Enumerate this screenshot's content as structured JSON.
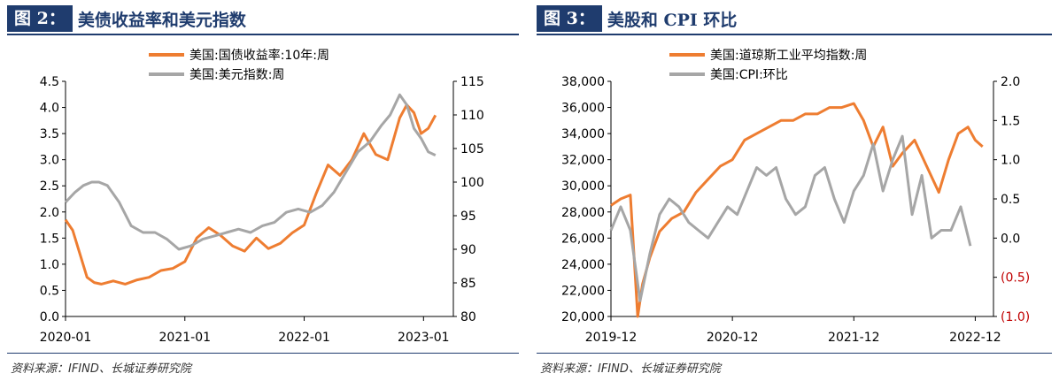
{
  "charts": [
    {
      "tag": "图 2：",
      "title": "美债收益率和美元指数",
      "source": "资料来源：IFIND、长城证券研究院"
    },
    {
      "tag": "图 3：",
      "title": "美股和 CPI 环比",
      "source": "资料来源：IFIND、长城证券研究院"
    }
  ],
  "chart_data": [
    {
      "type": "line",
      "title": "美债收益率和美元指数",
      "x_ticks": [
        "2020-01",
        "2021-01",
        "2022-01",
        "2023-01"
      ],
      "x_tick_pos": [
        0,
        1,
        2,
        3
      ],
      "y_left": {
        "range": [
          0,
          4.5
        ],
        "ticks": [
          0,
          0.5,
          1,
          1.5,
          2,
          2.5,
          3,
          3.5,
          4,
          4.5
        ],
        "tick_labels": [
          "0.0",
          "0.5",
          "1.0",
          "1.5",
          "2.0",
          "2.5",
          "3.0",
          "3.5",
          "4.0",
          "4.5"
        ]
      },
      "y_right": {
        "range": [
          80,
          115
        ],
        "ticks": [
          80,
          85,
          90,
          95,
          100,
          105,
          110,
          115
        ],
        "tick_labels": [
          "80",
          "85",
          "90",
          "95",
          "100",
          "105",
          "110",
          "115"
        ]
      },
      "legend": "top",
      "series": [
        {
          "name": "美国:国债收益率:10年:周",
          "axis": "left",
          "color": "#ee7d31",
          "x": [
            0.0,
            0.06,
            0.12,
            0.18,
            0.24,
            0.3,
            0.4,
            0.5,
            0.6,
            0.7,
            0.8,
            0.9,
            1.0,
            1.1,
            1.2,
            1.3,
            1.4,
            1.5,
            1.6,
            1.7,
            1.8,
            1.9,
            2.0,
            2.1,
            2.2,
            2.3,
            2.4,
            2.5,
            2.6,
            2.7,
            2.8,
            2.86,
            2.92,
            2.98,
            3.04,
            3.1
          ],
          "y": [
            1.85,
            1.65,
            1.2,
            0.75,
            0.65,
            0.62,
            0.68,
            0.62,
            0.7,
            0.75,
            0.88,
            0.92,
            1.05,
            1.5,
            1.7,
            1.55,
            1.35,
            1.25,
            1.5,
            1.3,
            1.4,
            1.6,
            1.75,
            2.35,
            2.9,
            2.7,
            3.0,
            3.5,
            3.1,
            3.0,
            3.8,
            4.05,
            3.9,
            3.5,
            3.6,
            3.85
          ]
        },
        {
          "name": "美国:美元指数:周",
          "axis": "right",
          "color": "#a6a6a6",
          "x": [
            0.0,
            0.08,
            0.15,
            0.22,
            0.28,
            0.35,
            0.45,
            0.55,
            0.65,
            0.75,
            0.85,
            0.95,
            1.05,
            1.15,
            1.25,
            1.35,
            1.45,
            1.55,
            1.65,
            1.75,
            1.85,
            1.95,
            2.05,
            2.15,
            2.25,
            2.35,
            2.45,
            2.55,
            2.65,
            2.72,
            2.8,
            2.86,
            2.92,
            2.98,
            3.04,
            3.1
          ],
          "y": [
            97,
            98.5,
            99.5,
            100,
            100,
            99.5,
            97,
            93.5,
            92.5,
            92.5,
            91.5,
            90,
            90.5,
            91.5,
            92,
            92.5,
            93,
            92.5,
            93.5,
            94,
            95.5,
            96,
            95.5,
            96.5,
            98.5,
            101.5,
            104.5,
            106,
            108.5,
            110,
            113,
            111.5,
            108,
            106.5,
            104.5,
            104
          ]
        }
      ]
    },
    {
      "type": "line",
      "title": "美股和 CPI 环比",
      "x_ticks": [
        "2019-12",
        "2020-12",
        "2021-12",
        "2022-12"
      ],
      "x_tick_pos": [
        0,
        1,
        2,
        3
      ],
      "y_left": {
        "range": [
          20000,
          38000
        ],
        "ticks": [
          20000,
          22000,
          24000,
          26000,
          28000,
          30000,
          32000,
          34000,
          36000,
          38000
        ],
        "tick_labels": [
          "20,000",
          "22,000",
          "24,000",
          "26,000",
          "28,000",
          "30,000",
          "32,000",
          "34,000",
          "36,000",
          "38,000"
        ]
      },
      "y_right": {
        "range": [
          -1.0,
          2.0
        ],
        "ticks": [
          -1.0,
          -0.5,
          0,
          0.5,
          1.0,
          1.5,
          2.0
        ],
        "tick_labels": [
          "(1.0)",
          "(0.5)",
          "0.0",
          "0.5",
          "1.0",
          "1.5",
          "2.0"
        ]
      },
      "legend": "top",
      "series": [
        {
          "name": "美国:道琼斯工业平均指数:周",
          "axis": "left",
          "color": "#ee7d31",
          "x": [
            0.0,
            0.08,
            0.16,
            0.22,
            0.26,
            0.32,
            0.4,
            0.5,
            0.6,
            0.7,
            0.8,
            0.9,
            1.0,
            1.1,
            1.2,
            1.3,
            1.4,
            1.5,
            1.6,
            1.7,
            1.8,
            1.9,
            2.0,
            2.08,
            2.16,
            2.24,
            2.32,
            2.4,
            2.5,
            2.6,
            2.7,
            2.78,
            2.86,
            2.94,
            3.0,
            3.06
          ],
          "y": [
            28500,
            29000,
            29300,
            20000,
            22500,
            24500,
            26500,
            27500,
            28000,
            29500,
            30500,
            31500,
            32000,
            33500,
            34000,
            34500,
            35000,
            35000,
            35500,
            35500,
            36000,
            36000,
            36300,
            35000,
            33000,
            34500,
            31500,
            32500,
            33500,
            31500,
            29500,
            32000,
            34000,
            34500,
            33500,
            33000
          ]
        },
        {
          "name": "美国:CPI:环比",
          "axis": "right",
          "color": "#a6a6a6",
          "x": [
            0.0,
            0.08,
            0.16,
            0.24,
            0.32,
            0.4,
            0.48,
            0.56,
            0.64,
            0.72,
            0.8,
            0.88,
            0.96,
            1.04,
            1.12,
            1.2,
            1.28,
            1.36,
            1.44,
            1.52,
            1.6,
            1.68,
            1.76,
            1.84,
            1.92,
            2.0,
            2.08,
            2.16,
            2.24,
            2.32,
            2.4,
            2.48,
            2.56,
            2.64,
            2.72,
            2.8,
            2.88,
            2.96
          ],
          "y": [
            0.1,
            0.4,
            0.1,
            -0.8,
            -0.2,
            0.3,
            0.5,
            0.4,
            0.2,
            0.1,
            0.0,
            0.2,
            0.4,
            0.3,
            0.6,
            0.9,
            0.8,
            0.9,
            0.5,
            0.3,
            0.4,
            0.8,
            0.9,
            0.5,
            0.2,
            0.6,
            0.8,
            1.2,
            0.6,
            1.0,
            1.3,
            0.3,
            0.8,
            0.0,
            0.1,
            0.1,
            0.4,
            -0.1
          ]
        }
      ]
    }
  ]
}
